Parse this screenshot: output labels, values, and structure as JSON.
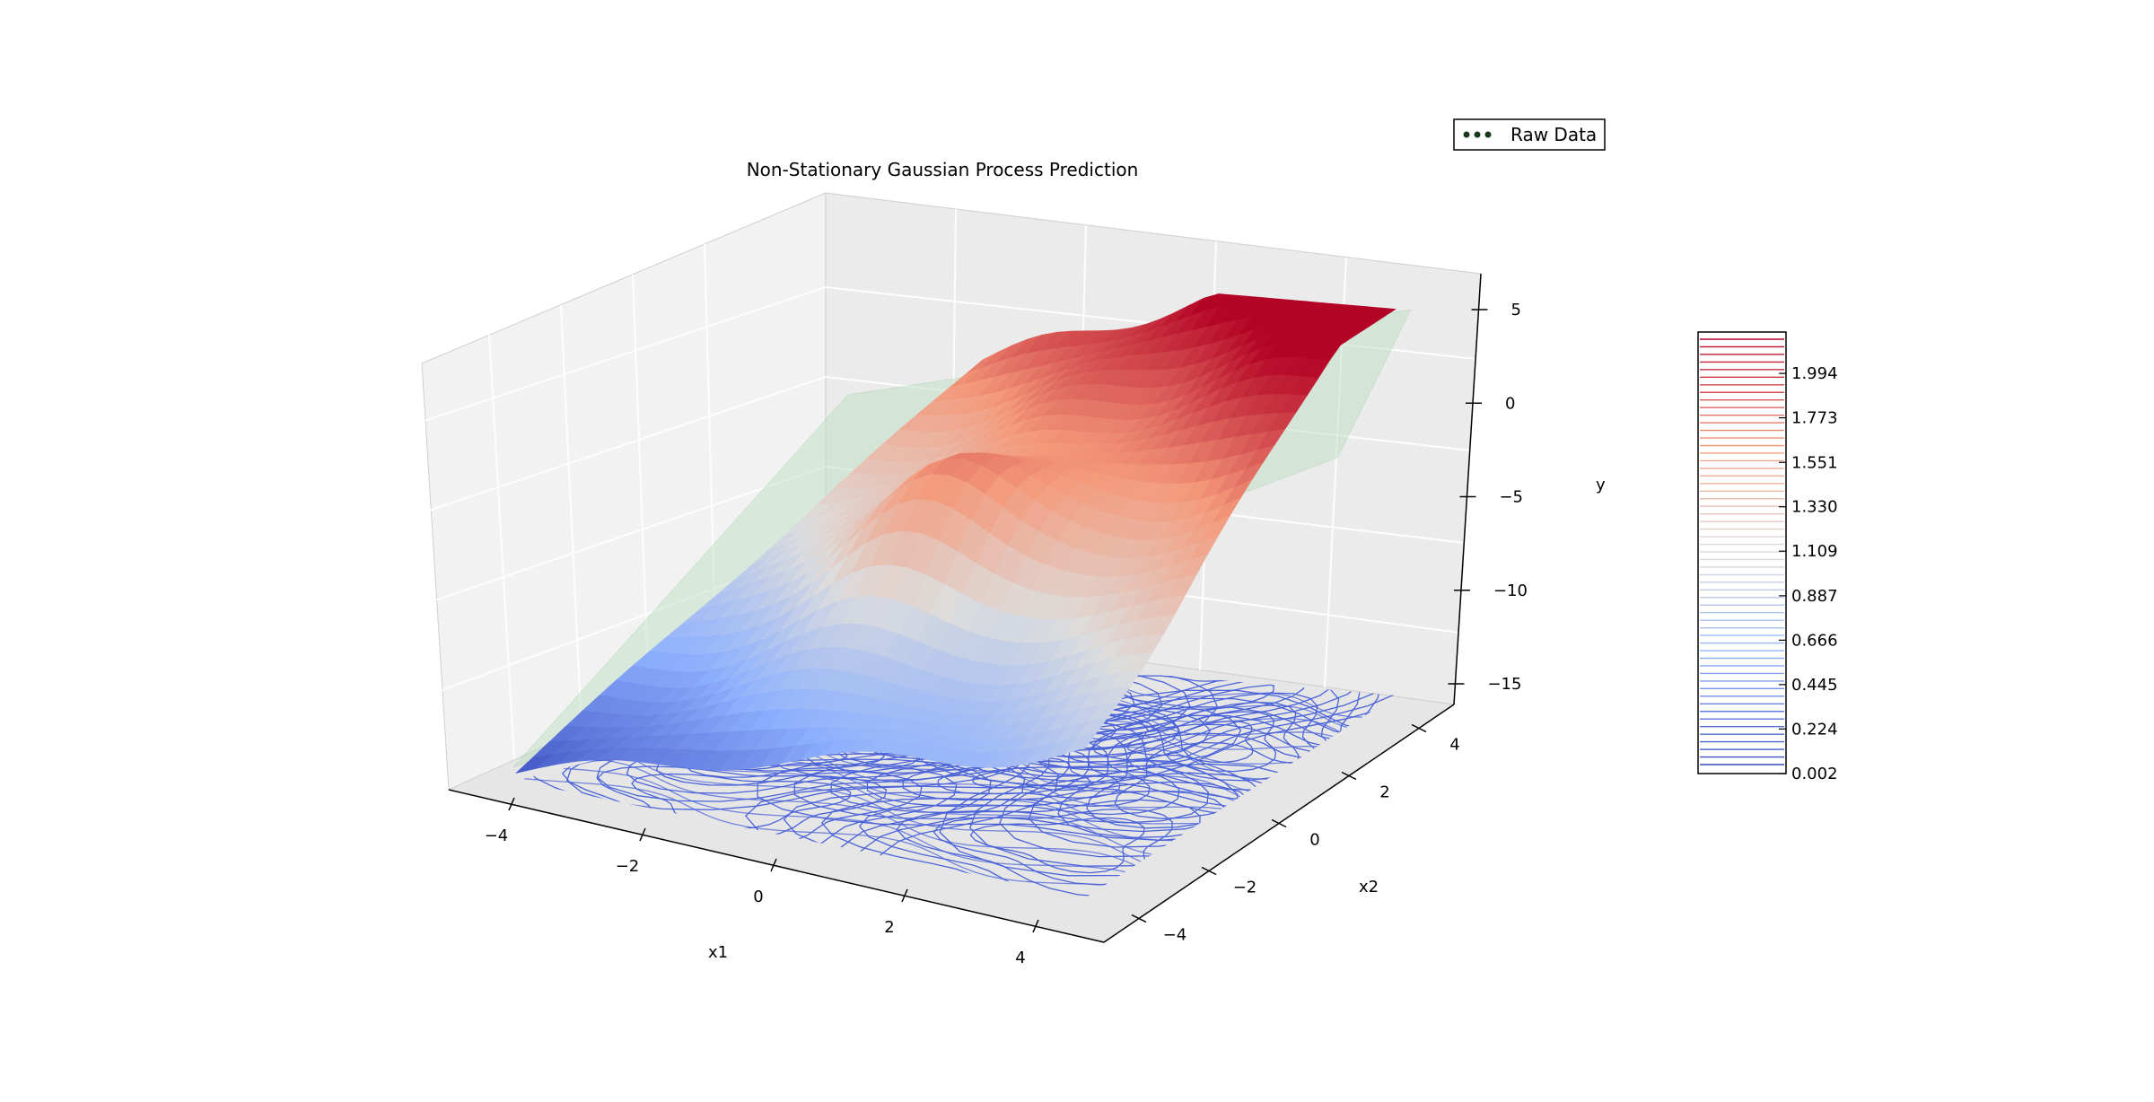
{
  "chart_data": {
    "type": "surface3d",
    "title": "Non-Stationary Gaussian Process Prediction",
    "xlabel": "x1",
    "ylabel": "x2",
    "zlabel": "y",
    "x_ticks": [
      "−4",
      "−2",
      "0",
      "2",
      "4"
    ],
    "y_ticks": [
      "−4",
      "−2",
      "0",
      "2",
      "4"
    ],
    "z_ticks": [
      "5",
      "0",
      "−5",
      "−10",
      "−15"
    ],
    "xlim": [
      -5,
      5
    ],
    "ylim": [
      -5,
      5
    ],
    "zlim": [
      -16,
      6
    ],
    "grid": true,
    "legend": {
      "position": "top-right",
      "entries": [
        {
          "label": "Raw Data",
          "marker": "scatter",
          "color": "#1a3a1a"
        }
      ]
    },
    "colorbar": {
      "colormap": "coolwarm",
      "ticks": [
        "0.002",
        "0.224",
        "0.445",
        "0.666",
        "0.887",
        "1.109",
        "1.330",
        "1.551",
        "1.773",
        "1.994"
      ],
      "range": [
        0.002,
        2.2
      ]
    },
    "series": [
      {
        "kind": "surface",
        "colormap": "coolwarm",
        "z_range": [
          -15,
          5
        ]
      },
      {
        "kind": "plane",
        "color": "#b9dfc0"
      },
      {
        "kind": "contour",
        "offset": -15,
        "colormap": "coolwarm",
        "value_range": [
          0.002,
          2.2
        ]
      }
    ]
  }
}
